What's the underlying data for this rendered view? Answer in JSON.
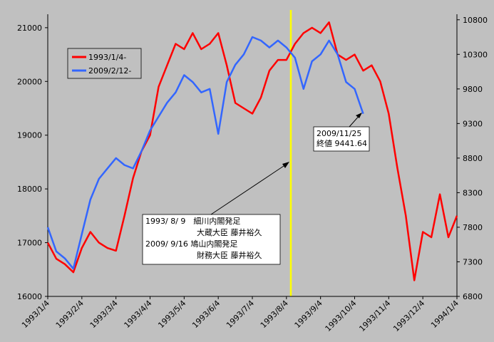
{
  "chart_data": {
    "type": "line",
    "categories": [
      "1993/1/4",
      null,
      null,
      null,
      "1993/2/4",
      null,
      null,
      null,
      "1993/3/4",
      null,
      null,
      null,
      "1993/4/4",
      null,
      null,
      null,
      "1993/5/4",
      null,
      null,
      null,
      "1993/6/4",
      null,
      null,
      null,
      "1993/7/4",
      null,
      null,
      null,
      "1993/8/4",
      null,
      null,
      null,
      "1993/9/4",
      null,
      null,
      null,
      "1993/10/4",
      null,
      null,
      null,
      "1993/11/4",
      null,
      null,
      null,
      "1993/12/4",
      null,
      null,
      null,
      "1994/1/4"
    ],
    "series": [
      {
        "name": "1993/1/4-",
        "color": "#ff0000",
        "values": [
          17000,
          16700,
          16600,
          16450,
          16900,
          17200,
          17000,
          16900,
          16850,
          17500,
          18200,
          18700,
          19000,
          19900,
          20300,
          20700,
          20600,
          20900,
          20600,
          20700,
          20900,
          20300,
          19600,
          19500,
          19400,
          19700,
          20200,
          20400,
          20400,
          20700,
          20900,
          21000,
          20900,
          21100,
          20500,
          20400,
          20500,
          20200,
          20300,
          20000,
          19400,
          18400,
          17500,
          16300,
          17200,
          17100,
          17900,
          17100,
          17500
        ]
      },
      {
        "name": "2009/2/12-",
        "color": "#3366ff",
        "axis": "y2",
        "values": [
          7800,
          7450,
          7350,
          7200,
          7700,
          8200,
          8500,
          8650,
          8800,
          8700,
          8650,
          8900,
          9200,
          9400,
          9600,
          9750,
          10000,
          9900,
          9750,
          9800,
          9150,
          9900,
          10150,
          10300,
          10550,
          10500,
          10400,
          10500,
          10400,
          10250,
          9800,
          10200,
          10300,
          10500,
          10300,
          9900,
          9800,
          9441.64,
          null,
          null,
          null,
          null,
          null,
          null,
          null,
          null,
          null,
          null,
          null
        ]
      }
    ],
    "ylim": [
      16000,
      21250
    ],
    "yticks": [
      16000,
      17000,
      18000,
      19000,
      20000,
      21000
    ],
    "y2lim": [
      6800,
      10880
    ],
    "y2ticks": [
      6800,
      7300,
      7800,
      8300,
      8800,
      9300,
      9800,
      10300,
      10800
    ],
    "grid": false,
    "annotations": [
      {
        "lines": [
          "2009/11/25",
          "終値 9441.64"
        ]
      },
      {
        "lines": [
          "1993/ 8/ 9　細川内閣発足",
          "大蔵大臣 藤井裕久",
          "2009/ 9/16 鳩山内閣発足",
          "財務大臣 藤井裕久"
        ]
      }
    ]
  }
}
